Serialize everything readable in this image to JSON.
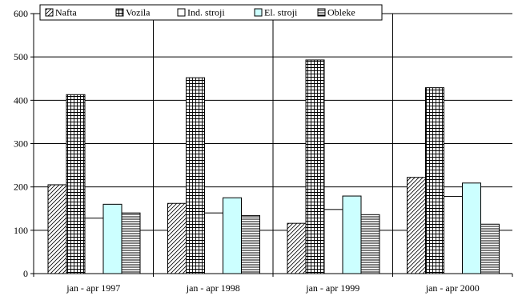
{
  "chart_data": {
    "type": "bar",
    "categories": [
      "jan - apr 1997",
      "jan - apr 1998",
      "jan - apr 1999",
      "jan - apr 2000"
    ],
    "series": [
      {
        "name": "Nafta",
        "values": [
          205,
          162,
          116,
          222
        ],
        "pattern": "diagonal-hatch",
        "color": "#ffffff"
      },
      {
        "name": "Vozila",
        "values": [
          413,
          452,
          493,
          429
        ],
        "pattern": "grid",
        "color": "#ffffff"
      },
      {
        "name": "Ind. stroji",
        "values": [
          128,
          140,
          148,
          178
        ],
        "pattern": "none",
        "color": "#ffffff"
      },
      {
        "name": "El. stroji",
        "values": [
          160,
          175,
          179,
          209
        ],
        "pattern": "none",
        "color": "#ccffff"
      },
      {
        "name": "Obleke",
        "values": [
          140,
          134,
          136,
          114
        ],
        "pattern": "horizontal-lines",
        "color": "#ffffff"
      }
    ],
    "ylim": [
      0,
      600
    ],
    "yticks": [
      0,
      100,
      200,
      300,
      400,
      500,
      600
    ],
    "grid": true,
    "legend_position": "top",
    "title": "",
    "xlabel": "",
    "ylabel": ""
  }
}
